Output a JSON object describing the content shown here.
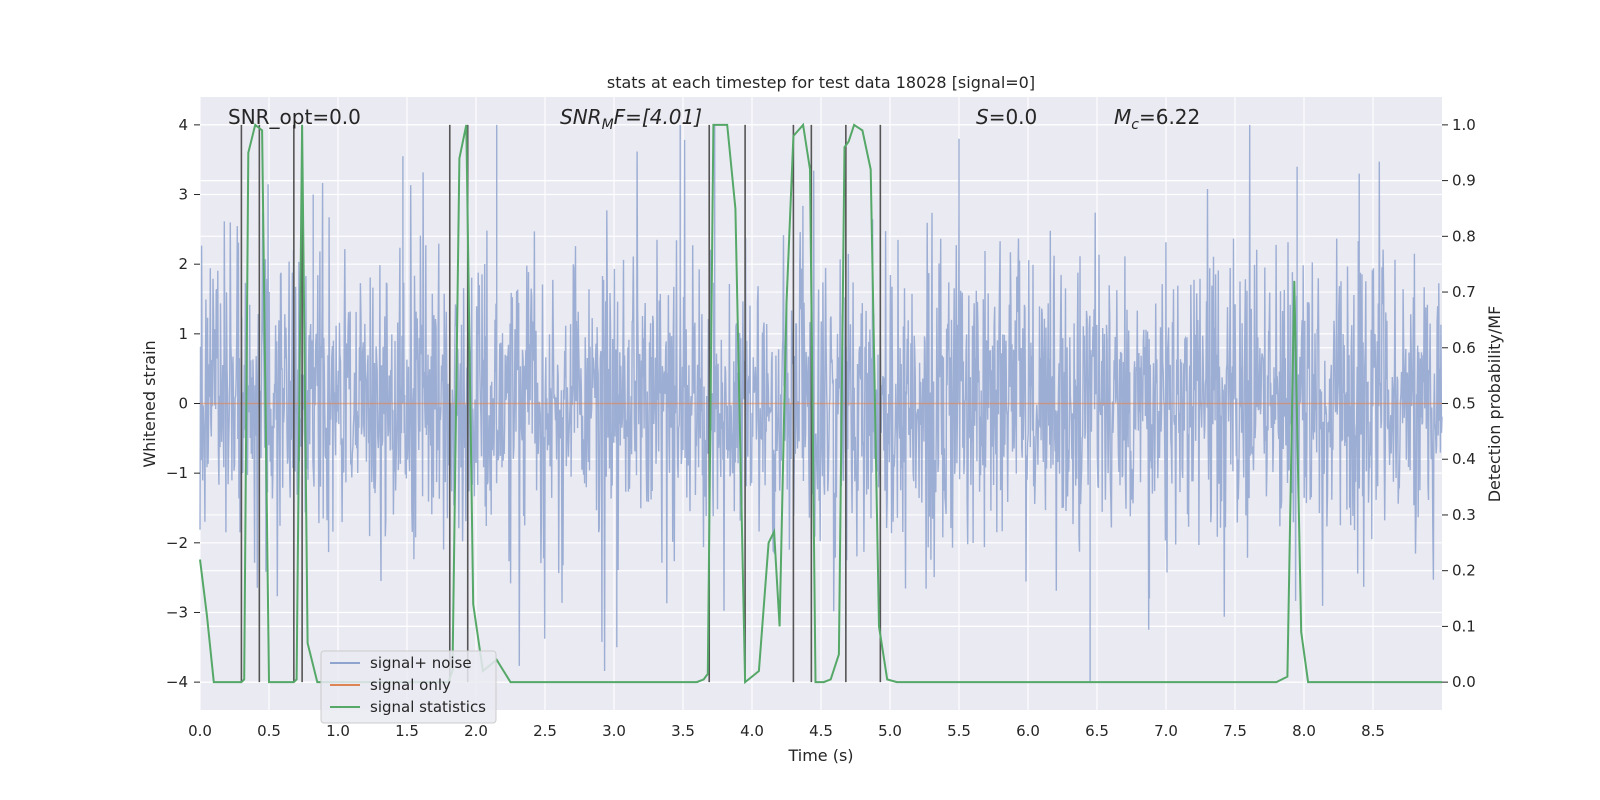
{
  "chart_data": {
    "type": "line",
    "title": "stats at each timestep for test data 18028 [signal=0]",
    "xlabel": "Time (s)",
    "ylabel_left": "Whitened strain",
    "ylabel_right": "Detection probability/MF",
    "xlim": [
      0.0,
      9.0
    ],
    "ylim_left": [
      -4.4,
      4.4
    ],
    "ylim_right": [
      -0.05,
      1.05
    ],
    "x_ticks": [
      "0.0",
      "0.5",
      "1.0",
      "1.5",
      "2.0",
      "2.5",
      "3.0",
      "3.5",
      "4.0",
      "4.5",
      "5.0",
      "5.5",
      "6.0",
      "6.5",
      "7.0",
      "7.5",
      "8.0",
      "8.5"
    ],
    "x_tick_values": [
      0.0,
      0.5,
      1.0,
      1.5,
      2.0,
      2.5,
      3.0,
      3.5,
      4.0,
      4.5,
      5.0,
      5.5,
      6.0,
      6.5,
      7.0,
      7.5,
      8.0,
      8.5
    ],
    "y_left_ticks": [
      "4",
      "3",
      "2",
      "1",
      "0",
      "−1",
      "−2",
      "−3",
      "−4"
    ],
    "y_left_tick_values": [
      4,
      3,
      2,
      1,
      0,
      -1,
      -2,
      -3,
      -4
    ],
    "y_right_ticks": [
      "1.0",
      "0.9",
      "0.8",
      "0.7",
      "0.6",
      "0.5",
      "0.4",
      "0.3",
      "0.2",
      "0.1",
      "0.0"
    ],
    "y_right_tick_values": [
      1.0,
      0.9,
      0.8,
      0.7,
      0.6,
      0.5,
      0.4,
      0.3,
      0.2,
      0.1,
      0.0
    ],
    "grid": true,
    "annotations": {
      "snr_opt": "SNR_opt=0.0",
      "snr_mf_main": "SNR",
      "snr_mf_sub": "M",
      "snr_mf_rest": "F=[4.01]",
      "s_main": "S",
      "s_rest": "=0.0",
      "mc_main": "M",
      "mc_sub": "c",
      "mc_rest": "=6.22"
    },
    "legend": {
      "placement": "lower-left",
      "entries": [
        {
          "label": "signal+ noise",
          "color": "#8fa3cf"
        },
        {
          "label": "signal only",
          "color": "#dd8452"
        },
        {
          "label": "signal statistics",
          "color": "#55a868"
        }
      ]
    },
    "series": [
      {
        "name": "signal+ noise",
        "color": "#8fa3cf",
        "axis": "left",
        "description": "whitened noise, roughly symmetric about 0 with spikes to about +/-3.5",
        "noise_std": 1.0,
        "peak_spikes": [
          [
            0.82,
            3.0
          ],
          [
            1.47,
            3.55
          ],
          [
            2.15,
            4.0
          ],
          [
            3.02,
            -3.5
          ],
          [
            3.48,
            4.0
          ],
          [
            3.73,
            4.0
          ],
          [
            5.5,
            3.8
          ],
          [
            6.45,
            -4.0
          ],
          [
            6.88,
            -2.8
          ],
          [
            7.95,
            3.4
          ],
          [
            8.4,
            3.3
          ]
        ]
      },
      {
        "name": "signal only",
        "color": "#dd8452",
        "axis": "left",
        "x": [
          0.0,
          9.0
        ],
        "y": [
          0.0,
          0.0
        ]
      },
      {
        "name": "signal statistics",
        "color": "#55a868",
        "axis": "right",
        "x": [
          0.0,
          0.05,
          0.1,
          0.2,
          0.3,
          0.32,
          0.35,
          0.4,
          0.45,
          0.5,
          0.6,
          0.68,
          0.7,
          0.74,
          0.78,
          0.85,
          1.0,
          1.8,
          1.83,
          1.88,
          1.93,
          1.98,
          2.05,
          2.1,
          2.15,
          2.2,
          2.25,
          2.3,
          3.6,
          3.65,
          3.68,
          3.72,
          3.76,
          3.82,
          3.88,
          3.95,
          4.0,
          4.05,
          4.12,
          4.16,
          4.2,
          4.25,
          4.3,
          4.37,
          4.42,
          4.46,
          4.52,
          4.57,
          4.63,
          4.67,
          4.7,
          4.74,
          4.8,
          4.86,
          4.92,
          4.98,
          5.05,
          5.1,
          5.2,
          7.8,
          7.88,
          7.93,
          7.98,
          8.03,
          8.08,
          8.15,
          9.0
        ],
        "y": [
          0.22,
          0.12,
          0.0,
          0.0,
          0.0,
          0.005,
          0.95,
          1.0,
          0.99,
          0.0,
          0.0,
          0.0,
          0.005,
          1.0,
          0.07,
          0.0,
          0.0,
          0.0,
          0.02,
          0.94,
          1.0,
          0.14,
          0.02,
          0.03,
          0.04,
          0.02,
          0.0,
          0.0,
          0.0,
          0.005,
          0.015,
          1.0,
          1.0,
          1.0,
          0.85,
          0.0,
          0.01,
          0.02,
          0.25,
          0.27,
          0.1,
          0.68,
          0.98,
          1.0,
          0.92,
          0.0,
          0.0,
          0.005,
          0.05,
          0.96,
          0.97,
          1.0,
          0.99,
          0.92,
          0.1,
          0.005,
          0.0,
          0.0,
          0.0,
          0.0,
          0.01,
          0.72,
          0.09,
          0.0,
          0.0,
          0.0,
          0.0
        ]
      }
    ],
    "vertical_lines_x": [
      0.3,
      0.43,
      0.68,
      0.74,
      1.81,
      1.94,
      3.69,
      3.95,
      4.3,
      4.43,
      4.68,
      4.93
    ],
    "vertical_lines_range_left": [
      -4,
      4
    ]
  }
}
